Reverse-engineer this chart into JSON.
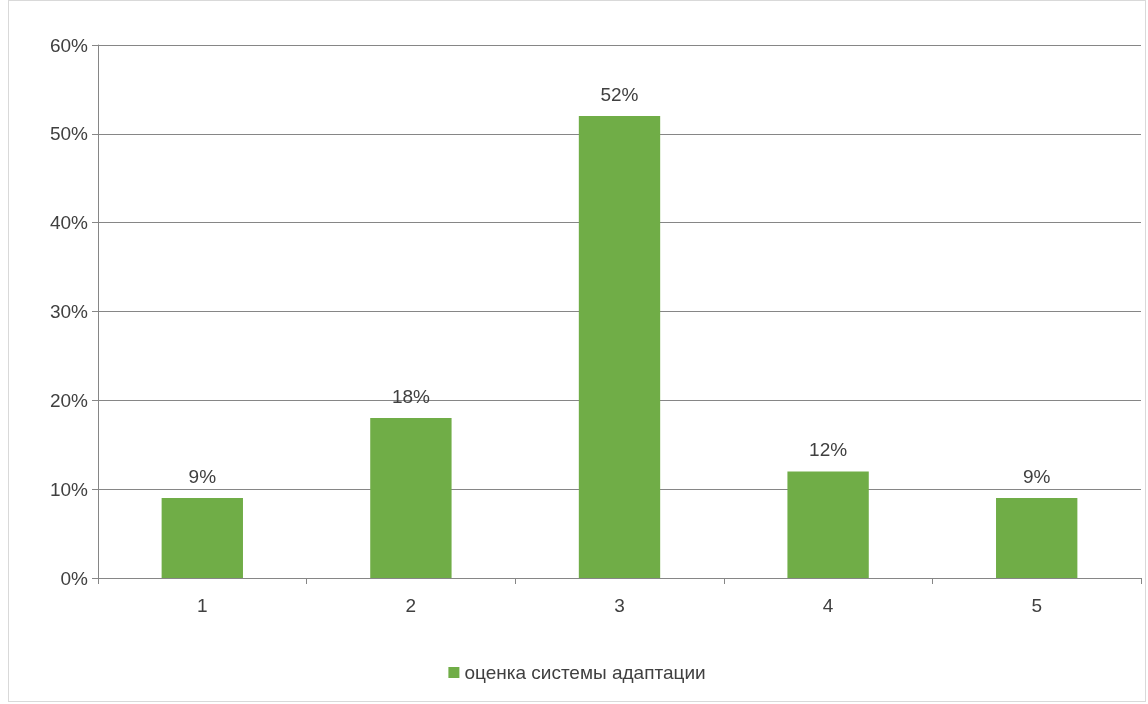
{
  "chart_data": {
    "type": "bar",
    "categories": [
      "1",
      "2",
      "3",
      "4",
      "5"
    ],
    "series": [
      {
        "name": "оценка системы адаптации",
        "color": "#70ad47",
        "values": [
          9,
          18,
          52,
          12,
          9
        ],
        "value_labels": [
          "9%",
          "18%",
          "52%",
          "12%",
          "9%"
        ]
      }
    ],
    "ylim": [
      0,
      60
    ],
    "yticks": [
      {
        "value": 0,
        "label": "0%"
      },
      {
        "value": 10,
        "label": "10%"
      },
      {
        "value": 20,
        "label": "20%"
      },
      {
        "value": 30,
        "label": "30%"
      },
      {
        "value": 40,
        "label": "40%"
      },
      {
        "value": 50,
        "label": "50%"
      },
      {
        "value": 60,
        "label": "60%"
      }
    ],
    "grid": "y",
    "legend": "bottom"
  }
}
